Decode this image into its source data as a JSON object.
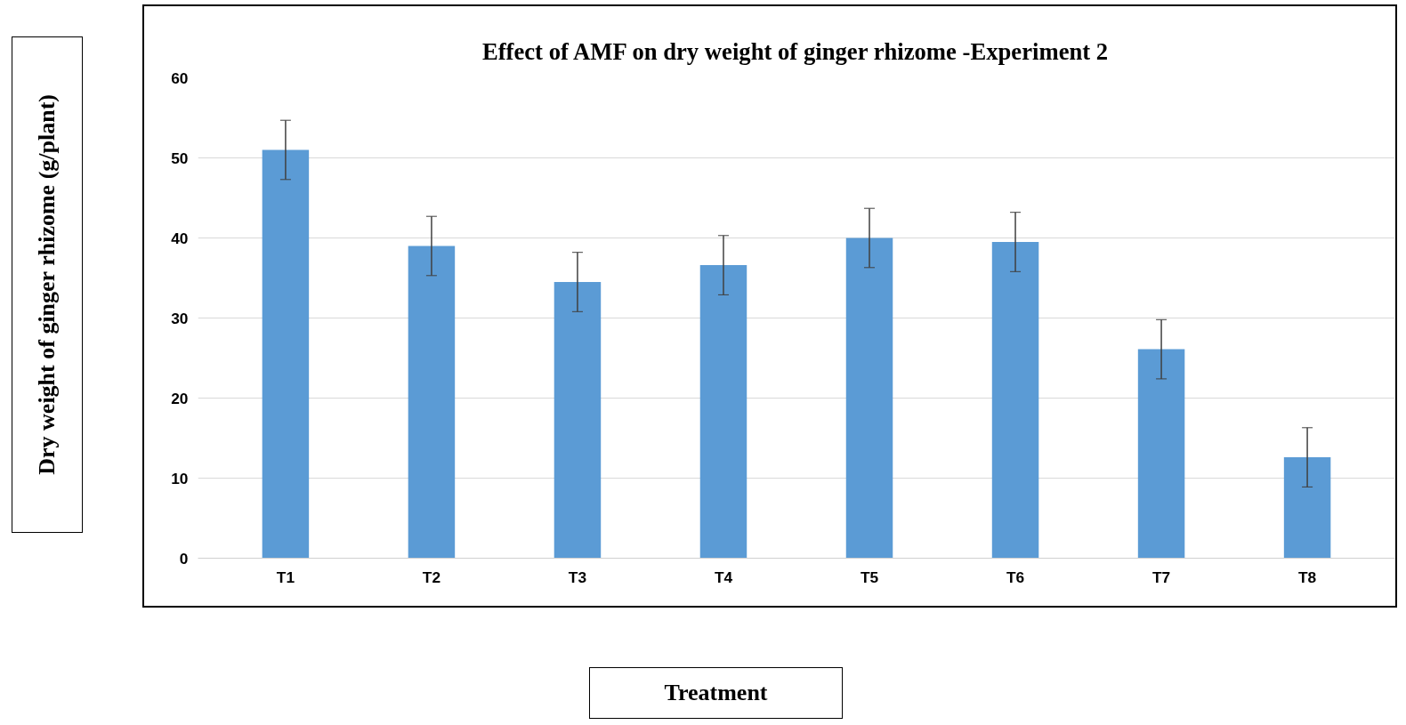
{
  "chart_data": {
    "type": "bar",
    "title": "Effect of AMF on dry weight of ginger rhizome -Experiment 2",
    "xlabel": "Treatment",
    "ylabel": "Dry weight of ginger rhizome (g/plant)",
    "categories": [
      "T1",
      "T2",
      "T3",
      "T4",
      "T5",
      "T6",
      "T7",
      "T8"
    ],
    "values": [
      51.0,
      39.0,
      34.5,
      36.6,
      40.0,
      39.5,
      26.1,
      12.6
    ],
    "errors": [
      3.7,
      3.7,
      3.7,
      3.7,
      3.7,
      3.7,
      3.7,
      3.7
    ],
    "color": "#5b9bd5",
    "ylim": [
      0,
      60
    ],
    "yticks": [
      0,
      10,
      20,
      30,
      40,
      50,
      60
    ],
    "grid": "y"
  }
}
